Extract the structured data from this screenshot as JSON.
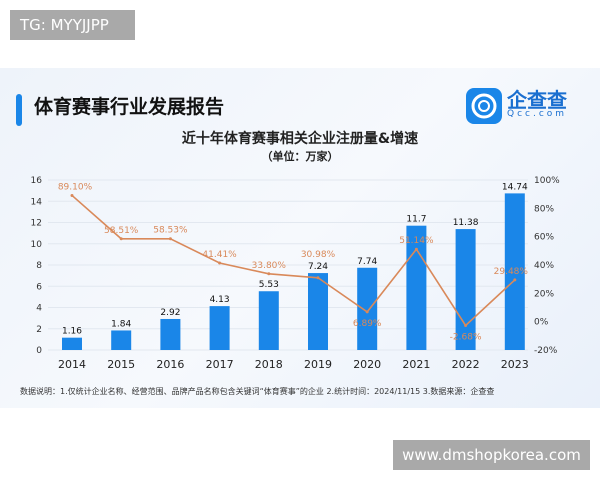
{
  "watermarks": {
    "top_left": "TG: MYYJJPP",
    "bottom_right": "www.dmshopkorea.com"
  },
  "header": {
    "report_title": "体育赛事行业发展报告",
    "logo_name": "企查查",
    "logo_domain": "Qcc.com"
  },
  "colors": {
    "bar": "#1a86e8",
    "line": "#d9895a",
    "accent": "#1a86e8"
  },
  "chart_data": {
    "type": "bar",
    "title": "近十年体育赛事相关企业注册量&增速",
    "subtitle": "（单位：万家）",
    "categories": [
      "2014",
      "2015",
      "2016",
      "2017",
      "2018",
      "2019",
      "2020",
      "2021",
      "2022",
      "2023"
    ],
    "series": [
      {
        "type": "bar",
        "axis": "left",
        "values": [
          1.16,
          1.84,
          2.92,
          4.13,
          5.53,
          7.24,
          7.74,
          11.7,
          11.38,
          14.74
        ],
        "labels": [
          "1.16",
          "1.84",
          "2.92",
          "4.13",
          "5.53",
          "7.24",
          "7.74",
          "11.7",
          "11.38",
          "14.74"
        ]
      },
      {
        "type": "line",
        "axis": "right",
        "values": [
          89.1,
          58.51,
          58.53,
          41.41,
          33.8,
          30.98,
          6.89,
          51.14,
          -2.68,
          29.48
        ],
        "labels": [
          "89.10%",
          "58.51%",
          "58.53%",
          "41.41%",
          "33.80%",
          "30.98%",
          "6.89%",
          "51.14%",
          "-2.68%",
          "29.48%"
        ]
      }
    ],
    "ylim": [
      0,
      16
    ],
    "yticks": [
      "0",
      "2",
      "4",
      "6",
      "8",
      "10",
      "12",
      "14",
      "16"
    ],
    "y2lim": [
      -20,
      100
    ],
    "y2ticks": [
      "-20%",
      "0%",
      "20%",
      "40%",
      "60%",
      "80%",
      "100%"
    ],
    "grid": true
  },
  "footnote": "数据说明：1.仅统计企业名称、经营范围、品牌产品名称包含关键词“体育赛事”的企业   2.统计时间：2024/11/15    3.数据来源：企查查"
}
